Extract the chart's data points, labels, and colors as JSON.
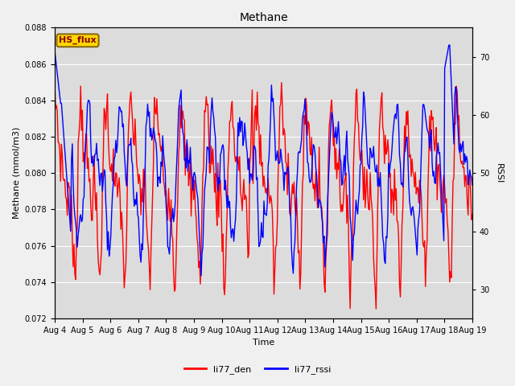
{
  "title": "Methane",
  "ylabel_left": "Methane (mmol/m3)",
  "ylabel_right": "RSSI",
  "xlabel": "Time",
  "ylim_left": [
    0.072,
    0.088
  ],
  "ylim_right": [
    25,
    75
  ],
  "x_tick_labels": [
    "Aug 4",
    "Aug 5",
    "Aug 6",
    "Aug 7",
    "Aug 8",
    "Aug 9",
    "Aug 10",
    "Aug 11",
    "Aug 12",
    "Aug 13",
    "Aug 14",
    "Aug 15",
    "Aug 16",
    "Aug 17",
    "Aug 18",
    "Aug 19"
  ],
  "annotation_text": "HS_flux",
  "annotation_fgcolor": "#8B0000",
  "annotation_bgcolor": "#FFD700",
  "annotation_edgecolor": "#8B6914",
  "line1_color": "red",
  "line2_color": "blue",
  "line1_label": "li77_den",
  "line2_label": "li77_rssi",
  "line_width": 1.0,
  "plot_bg_color": "#DCDCDC",
  "fig_bg_color": "#F0F0F0",
  "grid_color": "white",
  "n_points": 500,
  "seed": 7,
  "title_fontsize": 10,
  "label_fontsize": 8,
  "tick_fontsize": 7,
  "legend_fontsize": 8
}
